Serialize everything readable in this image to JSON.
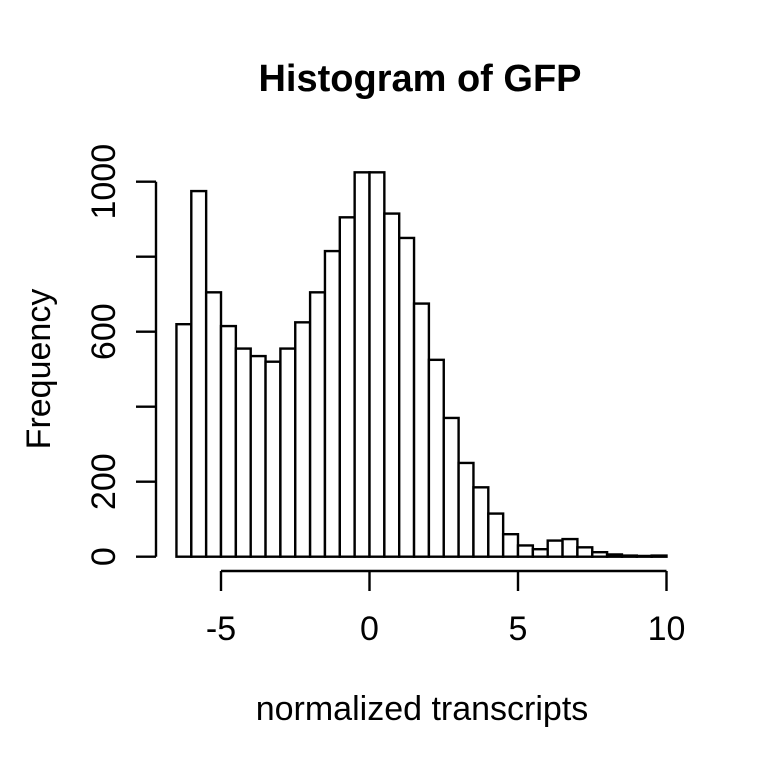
{
  "chart_data": {
    "type": "bar",
    "subtype": "histogram",
    "title": "Histogram of GFP",
    "xlabel": "normalized transcripts",
    "ylabel": "Frequency",
    "bin_start": -6.5,
    "bin_width": 0.5,
    "counts": [
      620,
      975,
      705,
      615,
      555,
      535,
      520,
      555,
      625,
      705,
      815,
      905,
      1025,
      1025,
      915,
      850,
      675,
      525,
      370,
      250,
      185,
      115,
      60,
      30,
      20,
      43,
      47,
      25,
      12,
      6,
      3,
      2,
      3
    ],
    "xlim": [
      -7.3,
      10.7
    ],
    "ylim": [
      0,
      1060
    ],
    "x_ticks": [
      -5,
      0,
      5,
      10
    ],
    "x_tick_labels": [
      "-5",
      "0",
      "5",
      "10"
    ],
    "y_ticks": [
      0,
      200,
      400,
      600,
      800,
      1000
    ],
    "y_tick_labels": [
      "0",
      "200",
      "",
      "600",
      "",
      "1000"
    ],
    "grid": false,
    "legend": "none",
    "bar_fill": "#ffffff",
    "bar_stroke": "#000000",
    "axis_color": "#000000",
    "text_color": "#000000",
    "background": "#ffffff"
  }
}
